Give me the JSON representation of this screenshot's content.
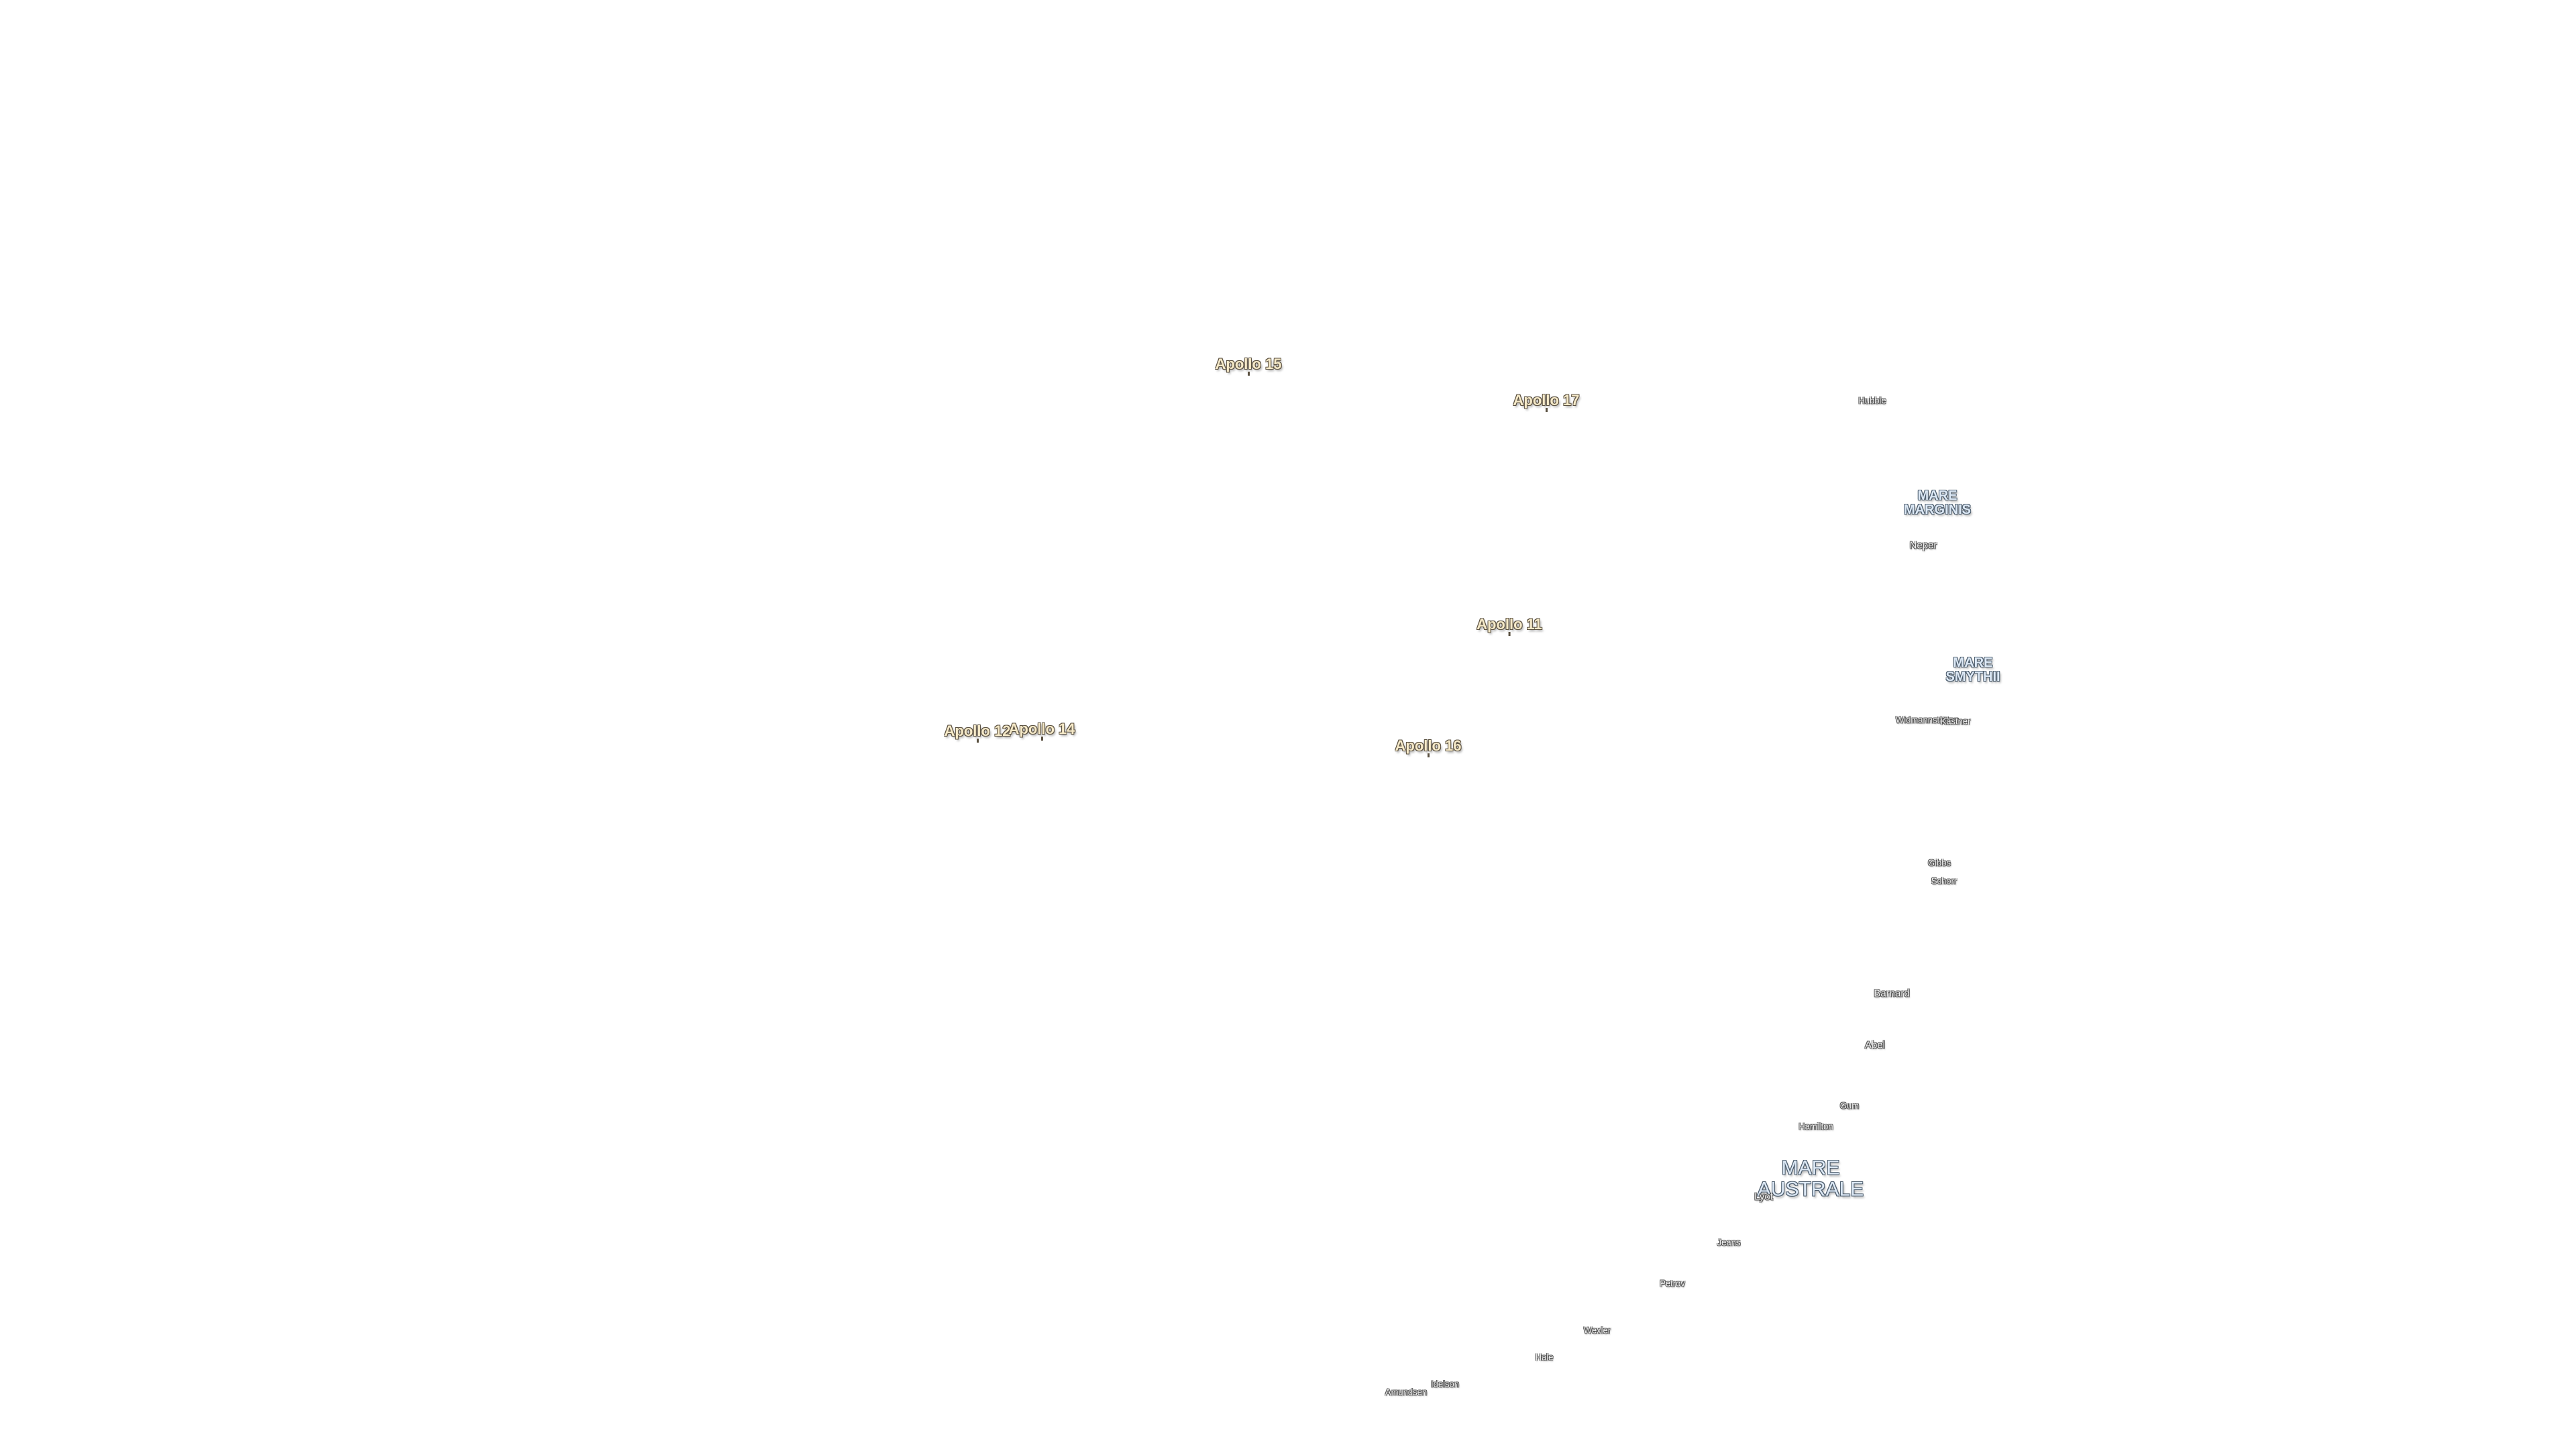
{
  "map": {
    "apollo_sites": [
      {
        "id": "apollo-15",
        "label": "Apollo 15"
      },
      {
        "id": "apollo-17",
        "label": "Apollo 17"
      },
      {
        "id": "apollo-11",
        "label": "Apollo 11"
      },
      {
        "id": "apollo-12",
        "label": "Apollo 12"
      },
      {
        "id": "apollo-14",
        "label": "Apollo 14"
      },
      {
        "id": "apollo-16",
        "label": "Apollo 16"
      }
    ],
    "maria": [
      {
        "id": "mare-marginis",
        "label": "MARE MARGINIS"
      },
      {
        "id": "mare-smythii",
        "label": "MARE SMYTHII"
      },
      {
        "id": "mare-australe",
        "label": "MARE AUSTRALE"
      }
    ],
    "craters": [
      {
        "id": "hubble",
        "label": "Hubble"
      },
      {
        "id": "neper",
        "label": "Neper"
      },
      {
        "id": "widmannstatten",
        "label": "Widmannstätten"
      },
      {
        "id": "kastner",
        "label": "Kästner"
      },
      {
        "id": "gibbs",
        "label": "Gibbs"
      },
      {
        "id": "schorr",
        "label": "Schorr"
      },
      {
        "id": "barnard",
        "label": "Barnard"
      },
      {
        "id": "abel",
        "label": "Abel"
      },
      {
        "id": "gum",
        "label": "Gum"
      },
      {
        "id": "hamilton",
        "label": "Hamilton"
      },
      {
        "id": "lyot",
        "label": "Lyot"
      },
      {
        "id": "jeans",
        "label": "Jeans"
      },
      {
        "id": "petrov",
        "label": "Petrov"
      },
      {
        "id": "wexler",
        "label": "Wexler"
      },
      {
        "id": "hale",
        "label": "Hale"
      },
      {
        "id": "nobel",
        "label": "Idelson"
      },
      {
        "id": "amundsen",
        "label": "Amundsen"
      }
    ]
  }
}
